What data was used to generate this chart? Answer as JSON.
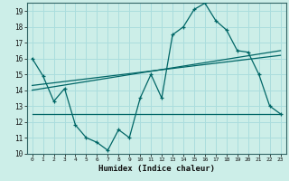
{
  "xlabel": "Humidex (Indice chaleur)",
  "background_color": "#cceee8",
  "grid_color": "#b0d8d4",
  "line_color": "#006666",
  "xlim": [
    -0.5,
    23.5
  ],
  "ylim": [
    10,
    19.5
  ],
  "yticks": [
    10,
    11,
    12,
    13,
    14,
    15,
    16,
    17,
    18,
    19
  ],
  "xticks": [
    0,
    1,
    2,
    3,
    4,
    5,
    6,
    7,
    8,
    9,
    10,
    11,
    12,
    13,
    14,
    15,
    16,
    17,
    18,
    19,
    20,
    21,
    22,
    23
  ],
  "series1_x": [
    0,
    1,
    2,
    3,
    4,
    5,
    6,
    7,
    8,
    9,
    10,
    11,
    12,
    13,
    14,
    15,
    16,
    17,
    18,
    19,
    20,
    21,
    22,
    23
  ],
  "series1_y": [
    16.0,
    14.9,
    13.3,
    14.1,
    11.8,
    11.0,
    10.7,
    10.2,
    11.5,
    11.0,
    13.5,
    15.0,
    13.5,
    17.5,
    18.0,
    19.1,
    19.5,
    18.4,
    17.8,
    16.5,
    16.4,
    15.0,
    13.0,
    12.5
  ],
  "series2_x": [
    0,
    4,
    10,
    22,
    23
  ],
  "series2_y": [
    12.5,
    12.5,
    12.5,
    12.5,
    12.5
  ],
  "series3_x": [
    0,
    23
  ],
  "series3_y": [
    14.0,
    16.5
  ],
  "series4_x": [
    0,
    23
  ],
  "series4_y": [
    14.3,
    16.2
  ]
}
